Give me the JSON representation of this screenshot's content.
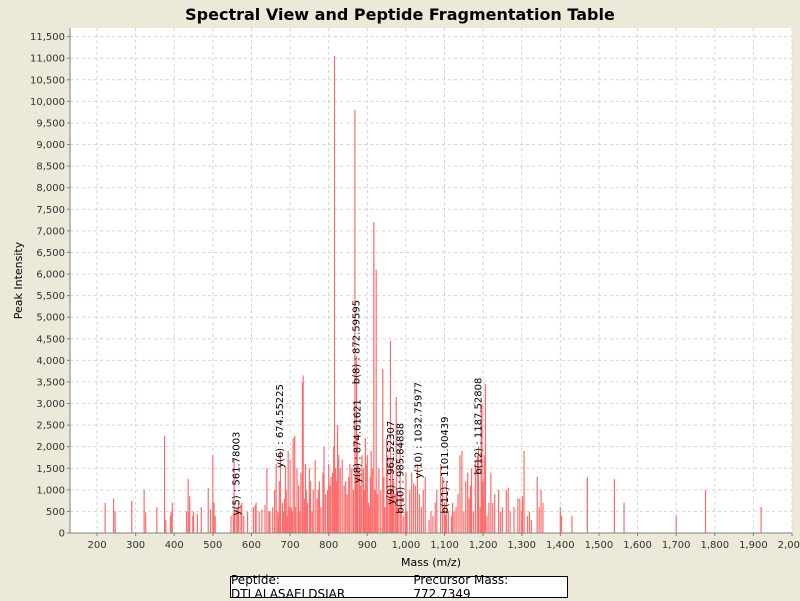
{
  "chart_data": {
    "type": "bar",
    "title": "Spectral View and Peptide Fragmentation Table",
    "xlabel": "Mass (m/z)",
    "ylabel": "Peak Intensity",
    "xlim": [
      130,
      2000
    ],
    "ylim": [
      0,
      11700
    ],
    "x_ticks": [
      "200",
      "300",
      "400",
      "500",
      "600",
      "700",
      "800",
      "900",
      "1,000",
      "1,100",
      "1,200",
      "1,300",
      "1,400",
      "1,500",
      "1,600",
      "1,700",
      "1,800",
      "1,900",
      "2,000"
    ],
    "y_ticks": [
      "0",
      "500",
      "1,000",
      "1,500",
      "2,000",
      "2,500",
      "3,000",
      "3,500",
      "4,000",
      "4,500",
      "5,000",
      "5,500",
      "6,000",
      "6,500",
      "7,000",
      "7,500",
      "8,000",
      "8,500",
      "9,000",
      "9,500",
      "10,000",
      "10,500",
      "11,000",
      "11,500"
    ],
    "grid": true,
    "bar_color": "#ff6b6b",
    "peaks": [
      [
        221,
        700
      ],
      [
        243,
        800
      ],
      [
        247,
        500
      ],
      [
        290,
        750
      ],
      [
        322,
        1000
      ],
      [
        326,
        480
      ],
      [
        355,
        600
      ],
      [
        375,
        2250
      ],
      [
        378,
        300
      ],
      [
        390,
        400
      ],
      [
        392,
        500
      ],
      [
        395,
        700
      ],
      [
        432,
        500
      ],
      [
        436,
        1250
      ],
      [
        439,
        500
      ],
      [
        440,
        850
      ],
      [
        448,
        400
      ],
      [
        450,
        500
      ],
      [
        460,
        450
      ],
      [
        470,
        600
      ],
      [
        488,
        1050
      ],
      [
        494,
        550
      ],
      [
        500,
        1800
      ],
      [
        503,
        700
      ],
      [
        506,
        400
      ],
      [
        547,
        400
      ],
      [
        553,
        450
      ],
      [
        555,
        1700
      ],
      [
        557,
        500
      ],
      [
        562,
        550
      ],
      [
        565,
        600
      ],
      [
        567,
        700
      ],
      [
        573,
        650
      ],
      [
        575,
        700
      ],
      [
        580,
        400
      ],
      [
        590,
        500
      ],
      [
        605,
        600
      ],
      [
        610,
        650
      ],
      [
        612,
        700
      ],
      [
        620,
        500
      ],
      [
        627,
        550
      ],
      [
        635,
        650
      ],
      [
        640,
        1500
      ],
      [
        645,
        500
      ],
      [
        648,
        500
      ],
      [
        655,
        600
      ],
      [
        660,
        1000
      ],
      [
        664,
        1600
      ],
      [
        668,
        500
      ],
      [
        670,
        400
      ],
      [
        672,
        1200
      ],
      [
        675,
        1900
      ],
      [
        680,
        700
      ],
      [
        683,
        500
      ],
      [
        685,
        800
      ],
      [
        688,
        1550
      ],
      [
        690,
        1000
      ],
      [
        693,
        400
      ],
      [
        695,
        1900
      ],
      [
        698,
        600
      ],
      [
        700,
        1700
      ],
      [
        703,
        600
      ],
      [
        705,
        500
      ],
      [
        708,
        2200
      ],
      [
        712,
        2250
      ],
      [
        714,
        600
      ],
      [
        718,
        1500
      ],
      [
        722,
        1100
      ],
      [
        725,
        500
      ],
      [
        728,
        1400
      ],
      [
        732,
        3500
      ],
      [
        734,
        3650
      ],
      [
        737,
        800
      ],
      [
        740,
        1600
      ],
      [
        742,
        1000
      ],
      [
        745,
        700
      ],
      [
        750,
        1500
      ],
      [
        753,
        1200
      ],
      [
        757,
        500
      ],
      [
        760,
        1000
      ],
      [
        765,
        1700
      ],
      [
        770,
        800
      ],
      [
        773,
        1000
      ],
      [
        776,
        1200
      ],
      [
        780,
        600
      ],
      [
        785,
        1400
      ],
      [
        788,
        2000
      ],
      [
        792,
        900
      ],
      [
        797,
        1000
      ],
      [
        800,
        1600
      ],
      [
        803,
        1100
      ],
      [
        806,
        1300
      ],
      [
        810,
        1400
      ],
      [
        813,
        2000
      ],
      [
        815,
        11050
      ],
      [
        818,
        1500
      ],
      [
        820,
        1200
      ],
      [
        823,
        2500
      ],
      [
        826,
        1800
      ],
      [
        830,
        1500
      ],
      [
        835,
        1700
      ],
      [
        840,
        1100
      ],
      [
        844,
        1200
      ],
      [
        848,
        900
      ],
      [
        852,
        1300
      ],
      [
        855,
        1600
      ],
      [
        860,
        1500
      ],
      [
        864,
        1000
      ],
      [
        868,
        9800
      ],
      [
        870,
        1300
      ],
      [
        872,
        4100
      ],
      [
        874,
        2300
      ],
      [
        876,
        1600
      ],
      [
        880,
        1400
      ],
      [
        883,
        1100
      ],
      [
        886,
        1800
      ],
      [
        890,
        1500
      ],
      [
        893,
        1000
      ],
      [
        895,
        2200
      ],
      [
        897,
        1600
      ],
      [
        900,
        1800
      ],
      [
        903,
        700
      ],
      [
        905,
        600
      ],
      [
        908,
        1300
      ],
      [
        910,
        1900
      ],
      [
        913,
        1500
      ],
      [
        917,
        7200
      ],
      [
        920,
        1000
      ],
      [
        923,
        6100
      ],
      [
        926,
        900
      ],
      [
        930,
        1500
      ],
      [
        935,
        1000
      ],
      [
        940,
        3800
      ],
      [
        943,
        1300
      ],
      [
        946,
        600
      ],
      [
        950,
        2200
      ],
      [
        953,
        1800
      ],
      [
        957,
        800
      ],
      [
        960,
        4450
      ],
      [
        963,
        1000
      ],
      [
        965,
        1700
      ],
      [
        968,
        1200
      ],
      [
        972,
        900
      ],
      [
        975,
        3150
      ],
      [
        978,
        1000
      ],
      [
        980,
        600
      ],
      [
        985,
        2150
      ],
      [
        988,
        900
      ],
      [
        993,
        400
      ],
      [
        998,
        500
      ],
      [
        1000,
        1400
      ],
      [
        1003,
        500
      ],
      [
        1010,
        1000
      ],
      [
        1015,
        1400
      ],
      [
        1020,
        1150
      ],
      [
        1025,
        1100
      ],
      [
        1030,
        1600
      ],
      [
        1035,
        900
      ],
      [
        1040,
        600
      ],
      [
        1045,
        1000
      ],
      [
        1050,
        1300
      ],
      [
        1060,
        300
      ],
      [
        1065,
        500
      ],
      [
        1070,
        400
      ],
      [
        1076,
        700
      ],
      [
        1080,
        1000
      ],
      [
        1090,
        1600
      ],
      [
        1095,
        1300
      ],
      [
        1100,
        700
      ],
      [
        1103,
        400
      ],
      [
        1105,
        1200
      ],
      [
        1110,
        500
      ],
      [
        1118,
        400
      ],
      [
        1121,
        700
      ],
      [
        1125,
        500
      ],
      [
        1130,
        600
      ],
      [
        1135,
        900
      ],
      [
        1140,
        1800
      ],
      [
        1145,
        1900
      ],
      [
        1150,
        500
      ],
      [
        1155,
        1200
      ],
      [
        1160,
        1400
      ],
      [
        1164,
        800
      ],
      [
        1167,
        1100
      ],
      [
        1170,
        1500
      ],
      [
        1175,
        500
      ],
      [
        1180,
        1600
      ],
      [
        1185,
        1800
      ],
      [
        1188,
        2000
      ],
      [
        1192,
        600
      ],
      [
        1195,
        2950
      ],
      [
        1197,
        3000
      ],
      [
        1200,
        1200
      ],
      [
        1203,
        1800
      ],
      [
        1206,
        3450
      ],
      [
        1210,
        400
      ],
      [
        1215,
        700
      ],
      [
        1220,
        1400
      ],
      [
        1225,
        700
      ],
      [
        1230,
        900
      ],
      [
        1240,
        1000
      ],
      [
        1245,
        500
      ],
      [
        1250,
        600
      ],
      [
        1260,
        1000
      ],
      [
        1265,
        1050
      ],
      [
        1270,
        500
      ],
      [
        1280,
        600
      ],
      [
        1290,
        800
      ],
      [
        1295,
        800
      ],
      [
        1300,
        500
      ],
      [
        1302,
        850
      ],
      [
        1306,
        1900
      ],
      [
        1315,
        400
      ],
      [
        1320,
        500
      ],
      [
        1325,
        300
      ],
      [
        1340,
        1300
      ],
      [
        1345,
        600
      ],
      [
        1350,
        1000
      ],
      [
        1355,
        700
      ],
      [
        1400,
        600
      ],
      [
        1403,
        400
      ],
      [
        1430,
        400
      ],
      [
        1470,
        1300
      ],
      [
        1540,
        1250
      ],
      [
        1565,
        700
      ],
      [
        1700,
        400
      ],
      [
        1776,
        1000
      ],
      [
        1920,
        600
      ]
    ],
    "annotations": [
      {
        "label": "y(5) : 561.78003",
        "x": 561.78,
        "top": 2350
      },
      {
        "label": "y(6) : 674.55225",
        "x": 674.55,
        "top": 3450
      },
      {
        "label": "b(8) : 872.59595",
        "x": 872.6,
        "top": 5400
      },
      {
        "label": "y(8) : 874.61621",
        "x": 874.62,
        "top": 3100
      },
      {
        "label": "y(9) : 961.52307",
        "x": 961.52,
        "top": 2600
      },
      {
        "label": "b(10) : 985.84888",
        "x": 985.85,
        "top": 2550
      },
      {
        "label": "y(10) : 1032.75977",
        "x": 1032.76,
        "top": 3500
      },
      {
        "label": "b(11) : 1101.00439",
        "x": 1101.0,
        "top": 2700
      },
      {
        "label": "b(12) : 1187.52808",
        "x": 1187.53,
        "top": 3600
      }
    ]
  },
  "footer": {
    "peptide": "Peptide: DTLALASAELDSIAR",
    "precursor": "Precursor Mass: 772.7349"
  }
}
